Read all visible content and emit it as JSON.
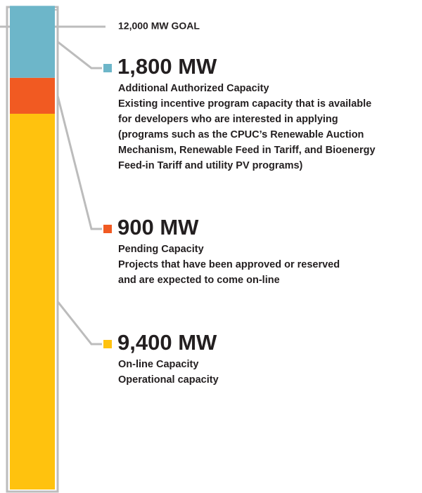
{
  "chart_data": {
    "type": "stacked_bar",
    "goal": 12000,
    "goal_label": "12,000 MW GOAL",
    "ylim": [
      0,
      12000
    ],
    "series": [
      {
        "name": "On-line Capacity",
        "color": "#ffc20e",
        "values": [
          9400
        ],
        "value_labels": [
          "9,400 MW"
        ],
        "description": [
          "Operational capacity"
        ]
      },
      {
        "name": "Pending Capacity",
        "color": "#f15a22",
        "values": [
          900
        ],
        "value_labels": [
          "900 MW"
        ],
        "description": [
          "Projects that have been approved or reserved",
          "and are expected to come on-line"
        ]
      },
      {
        "name": "Additional Authorized Capacity",
        "color": "#6db6c9",
        "values": [
          1800
        ],
        "value_labels": [
          "1,800 MW"
        ],
        "description": [
          "Existing incentive program capacity that is available",
          "for developers who are interested in applying",
          "(programs such as the CPUC’s Renewable Auction",
          "Mechanism, Renewable Feed in Tariff, and  Bioenergy",
          "Feed-in Tariff and utility PV programs)"
        ]
      }
    ]
  }
}
